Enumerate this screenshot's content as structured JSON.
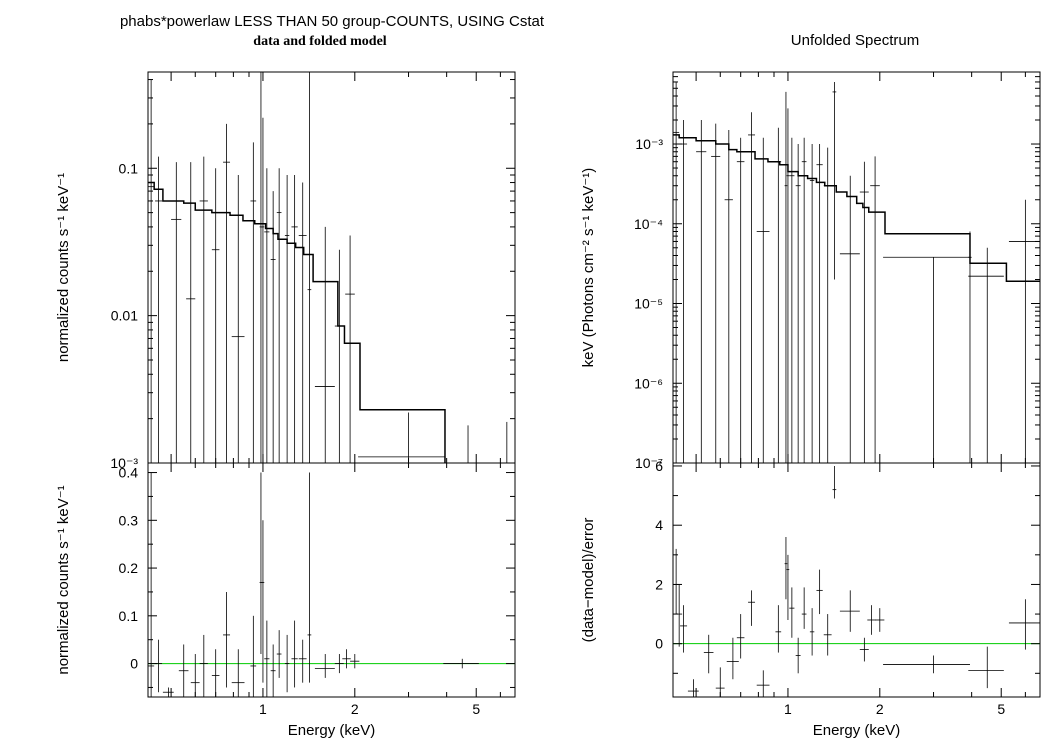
{
  "title_left": "phabs*powerlaw LESS THAN 50 group-COUNTS, USING Cstat",
  "subtitle_left": "data and folded model",
  "title_right": "Unfolded Spectrum",
  "colors": {
    "axis": "#000000",
    "model": "#000000",
    "data": "#000000",
    "zero_line": "#00cc00"
  },
  "chart_data": [
    {
      "id": "folded",
      "type": "line",
      "scale": "log-log",
      "xlabel": "",
      "ylabel": "normalized counts s⁻¹ keV⁻¹",
      "xlim": [
        0.42,
        6.7
      ],
      "ylim": [
        0.001,
        0.45
      ],
      "y_ticks": [
        {
          "v": 0.001,
          "label": "10⁻³"
        },
        {
          "v": 0.01,
          "label": "0.01"
        },
        {
          "v": 0.1,
          "label": "0.1"
        }
      ],
      "model": [
        [
          0.42,
          0.08
        ],
        [
          0.44,
          0.072
        ],
        [
          0.47,
          0.06
        ],
        [
          0.55,
          0.058
        ],
        [
          0.6,
          0.052
        ],
        [
          0.68,
          0.05
        ],
        [
          0.78,
          0.048
        ],
        [
          0.86,
          0.044
        ],
        [
          0.94,
          0.042
        ],
        [
          1.02,
          0.039
        ],
        [
          1.08,
          0.036
        ],
        [
          1.12,
          0.033
        ],
        [
          1.2,
          0.031
        ],
        [
          1.28,
          0.029
        ],
        [
          1.36,
          0.026
        ],
        [
          1.46,
          0.017
        ],
        [
          1.62,
          0.017
        ],
        [
          1.76,
          0.0085
        ],
        [
          1.85,
          0.0065
        ],
        [
          2.08,
          0.0023
        ],
        [
          3.95,
          0.0023
        ],
        [
          3.95,
          0.001
        ]
      ],
      "data": [
        {
          "x": 0.43,
          "xe": 0.01,
          "y": 0.075,
          "lo": 0.001,
          "hi": 0.4
        },
        {
          "x": 0.455,
          "xe": 0.012,
          "y": 0.06,
          "lo": 0.001,
          "hi": 0.12
        },
        {
          "x": 0.52,
          "xe": 0.02,
          "y": 0.045,
          "lo": 0.001,
          "hi": 0.11
        },
        {
          "x": 0.58,
          "xe": 0.02,
          "y": 0.013,
          "lo": 0.001,
          "hi": 0.11
        },
        {
          "x": 0.64,
          "xe": 0.02,
          "y": 0.06,
          "lo": 0.001,
          "hi": 0.12
        },
        {
          "x": 0.7,
          "xe": 0.02,
          "y": 0.028,
          "lo": 0.001,
          "hi": 0.1
        },
        {
          "x": 0.76,
          "xe": 0.02,
          "y": 0.11,
          "lo": 0.001,
          "hi": 0.2
        },
        {
          "x": 0.83,
          "xe": 0.04,
          "y": 0.0072,
          "lo": 0.001,
          "hi": 0.09
        },
        {
          "x": 0.93,
          "xe": 0.02,
          "y": 0.06,
          "lo": 0.001,
          "hi": 0.15
        },
        {
          "x": 0.985,
          "xe": 0.01,
          "y": 0.04,
          "lo": 0.001,
          "hi": 0.45
        },
        {
          "x": 1.0,
          "xe": 0.01,
          "y": 0.04,
          "lo": 0.001,
          "hi": 0.22
        },
        {
          "x": 1.03,
          "xe": 0.02,
          "y": 0.037,
          "lo": 0.001,
          "hi": 0.1
        },
        {
          "x": 1.08,
          "xe": 0.02,
          "y": 0.024,
          "lo": 0.001,
          "hi": 0.07
        },
        {
          "x": 1.13,
          "xe": 0.02,
          "y": 0.05,
          "lo": 0.001,
          "hi": 0.1
        },
        {
          "x": 1.2,
          "xe": 0.02,
          "y": 0.035,
          "lo": 0.001,
          "hi": 0.09
        },
        {
          "x": 1.27,
          "xe": 0.03,
          "y": 0.04,
          "lo": 0.001,
          "hi": 0.09
        },
        {
          "x": 1.35,
          "xe": 0.04,
          "y": 0.035,
          "lo": 0.001,
          "hi": 0.08
        },
        {
          "x": 1.42,
          "xe": 0.02,
          "y": 0.015,
          "lo": 0.001,
          "hi": 0.45
        },
        {
          "x": 1.6,
          "xe": 0.12,
          "y": 0.0033,
          "lo": 0.001,
          "hi": 0.04
        },
        {
          "x": 1.78,
          "xe": 0.06,
          "y": 0.0085,
          "lo": 0.001,
          "hi": 0.028
        },
        {
          "x": 1.93,
          "xe": 0.07,
          "y": 0.014,
          "lo": 0.001,
          "hi": 0.035
        },
        {
          "x": 3.0,
          "xe": 0.95,
          "y": 0.0011,
          "lo": 0.001,
          "hi": 0.0022
        },
        {
          "x": 4.7,
          "xe": 0.05,
          "y": 0.001,
          "lo": 0.001,
          "hi": 0.0018
        },
        {
          "x": 6.3,
          "xe": 0.05,
          "y": 0.001,
          "lo": 0.001,
          "hi": 0.0019
        }
      ]
    },
    {
      "id": "folded-residual",
      "type": "scatter",
      "scale": "log-linear",
      "xlabel": "Energy (keV)",
      "ylabel": "normalized counts s⁻¹ keV⁻¹",
      "xlim": [
        0.42,
        6.7
      ],
      "ylim": [
        -0.07,
        0.42
      ],
      "x_ticks": [
        {
          "v": 1,
          "label": "1"
        },
        {
          "v": 2,
          "label": "2"
        },
        {
          "v": 5,
          "label": "5"
        }
      ],
      "y_ticks": [
        {
          "v": 0,
          "label": "0"
        },
        {
          "v": 0.1,
          "label": "0.1"
        },
        {
          "v": 0.2,
          "label": "0.2"
        },
        {
          "v": 0.3,
          "label": "0.3"
        },
        {
          "v": 0.4,
          "label": "0.4"
        }
      ],
      "zero_line": 0,
      "data": [
        {
          "x": 0.43,
          "xe": 0.01,
          "y": -0.005,
          "lo": -0.07,
          "hi": 0.4
        },
        {
          "x": 0.455,
          "xe": 0.012,
          "y": 0.0,
          "lo": -0.06,
          "hi": 0.05
        },
        {
          "x": 0.49,
          "xe": 0.02,
          "y": -0.06,
          "lo": -0.07,
          "hi": -0.05
        },
        {
          "x": 0.55,
          "xe": 0.02,
          "y": -0.015,
          "lo": -0.07,
          "hi": 0.04
        },
        {
          "x": 0.6,
          "xe": 0.02,
          "y": -0.04,
          "lo": -0.07,
          "hi": 0.02
        },
        {
          "x": 0.64,
          "xe": 0.02,
          "y": 0.0,
          "lo": -0.07,
          "hi": 0.06
        },
        {
          "x": 0.7,
          "xe": 0.02,
          "y": -0.025,
          "lo": -0.07,
          "hi": 0.03
        },
        {
          "x": 0.76,
          "xe": 0.02,
          "y": 0.06,
          "lo": -0.05,
          "hi": 0.15
        },
        {
          "x": 0.83,
          "xe": 0.04,
          "y": -0.04,
          "lo": -0.07,
          "hi": 0.03
        },
        {
          "x": 0.93,
          "xe": 0.02,
          "y": -0.005,
          "lo": -0.07,
          "hi": 0.1
        },
        {
          "x": 0.985,
          "xe": 0.01,
          "y": 0.17,
          "lo": 0.02,
          "hi": 0.4
        },
        {
          "x": 1.0,
          "xe": 0.01,
          "y": 0.17,
          "lo": -0.04,
          "hi": 0.3
        },
        {
          "x": 1.03,
          "xe": 0.02,
          "y": 0.01,
          "lo": -0.07,
          "hi": 0.09
        },
        {
          "x": 1.08,
          "xe": 0.02,
          "y": -0.015,
          "lo": -0.07,
          "hi": 0.04
        },
        {
          "x": 1.13,
          "xe": 0.02,
          "y": 0.02,
          "lo": -0.03,
          "hi": 0.07
        },
        {
          "x": 1.2,
          "xe": 0.02,
          "y": 0.0,
          "lo": -0.06,
          "hi": 0.06
        },
        {
          "x": 1.27,
          "xe": 0.03,
          "y": 0.01,
          "lo": -0.05,
          "hi": 0.09
        },
        {
          "x": 1.35,
          "xe": 0.04,
          "y": 0.01,
          "lo": -0.04,
          "hi": 0.05
        },
        {
          "x": 1.42,
          "xe": 0.02,
          "y": 0.06,
          "lo": -0.04,
          "hi": 0.4
        },
        {
          "x": 1.6,
          "xe": 0.12,
          "y": -0.01,
          "lo": -0.03,
          "hi": 0.02
        },
        {
          "x": 1.78,
          "xe": 0.06,
          "y": 0.0,
          "lo": -0.02,
          "hi": 0.02
        },
        {
          "x": 1.88,
          "xe": 0.06,
          "y": 0.01,
          "lo": -0.01,
          "hi": 0.03
        },
        {
          "x": 2.0,
          "xe": 0.07,
          "y": 0.005,
          "lo": -0.01,
          "hi": 0.02
        },
        {
          "x": 4.5,
          "xe": 0.6,
          "y": 0.0,
          "lo": -0.01,
          "hi": 0.01
        }
      ]
    },
    {
      "id": "unfolded",
      "type": "line",
      "scale": "log-log",
      "xlabel": "",
      "ylabel": "keV (Photons cm⁻² s⁻¹ keV⁻¹)",
      "xlim": [
        0.42,
        6.7
      ],
      "ylim": [
        1e-07,
        0.008
      ],
      "y_ticks": [
        {
          "v": 1e-07,
          "label": "10⁻⁷"
        },
        {
          "v": 1e-06,
          "label": "10⁻⁶"
        },
        {
          "v": 1e-05,
          "label": "10⁻⁵"
        },
        {
          "v": 0.0001,
          "label": "10⁻⁴"
        },
        {
          "v": 0.001,
          "label": "10⁻³"
        }
      ],
      "model": [
        [
          0.42,
          0.0013
        ],
        [
          0.44,
          0.0012
        ],
        [
          0.5,
          0.0011
        ],
        [
          0.58,
          0.001
        ],
        [
          0.64,
          0.00085
        ],
        [
          0.68,
          0.0008
        ],
        [
          0.78,
          0.00065
        ],
        [
          0.86,
          0.0006
        ],
        [
          0.94,
          0.00055
        ],
        [
          1.0,
          0.00045
        ],
        [
          1.08,
          0.0004
        ],
        [
          1.16,
          0.00037
        ],
        [
          1.24,
          0.00033
        ],
        [
          1.32,
          0.0003
        ],
        [
          1.44,
          0.00025
        ],
        [
          1.56,
          0.00022
        ],
        [
          1.68,
          0.00018
        ],
        [
          1.76,
          0.00016
        ],
        [
          1.84,
          0.00014
        ],
        [
          2.08,
          7.5e-05
        ],
        [
          3.95,
          7.5e-05
        ],
        [
          3.95,
          3.2e-05
        ],
        [
          5.2,
          3.2e-05
        ],
        [
          5.2,
          1.9e-05
        ],
        [
          6.7,
          1.9e-05
        ]
      ],
      "data": [
        {
          "x": 0.43,
          "xe": 0.01,
          "y": 0.0014,
          "lo": 1e-07,
          "hi": 0.006
        },
        {
          "x": 0.455,
          "xe": 0.012,
          "y": 0.001,
          "lo": 1e-07,
          "hi": 0.002
        },
        {
          "x": 0.52,
          "xe": 0.02,
          "y": 0.0008,
          "lo": 1e-07,
          "hi": 0.002
        },
        {
          "x": 0.58,
          "xe": 0.02,
          "y": 0.0007,
          "lo": 1e-07,
          "hi": 0.0018
        },
        {
          "x": 0.64,
          "xe": 0.02,
          "y": 0.0002,
          "lo": 1e-07,
          "hi": 0.0015
        },
        {
          "x": 0.7,
          "xe": 0.02,
          "y": 0.0006,
          "lo": 1e-07,
          "hi": 0.0012
        },
        {
          "x": 0.76,
          "xe": 0.02,
          "y": 0.0013,
          "lo": 1e-07,
          "hi": 0.0025
        },
        {
          "x": 0.83,
          "xe": 0.04,
          "y": 8e-05,
          "lo": 1e-07,
          "hi": 0.0012
        },
        {
          "x": 0.93,
          "xe": 0.02,
          "y": 0.0006,
          "lo": 1e-07,
          "hi": 0.0016
        },
        {
          "x": 0.985,
          "xe": 0.01,
          "y": 0.0003,
          "lo": 1e-07,
          "hi": 0.0045
        },
        {
          "x": 1.0,
          "xe": 0.01,
          "y": 0.0004,
          "lo": 1e-07,
          "hi": 0.0028
        },
        {
          "x": 1.03,
          "xe": 0.02,
          "y": 0.0004,
          "lo": 1e-07,
          "hi": 0.0012
        },
        {
          "x": 1.08,
          "xe": 0.02,
          "y": 0.0003,
          "lo": 1e-07,
          "hi": 0.001
        },
        {
          "x": 1.13,
          "xe": 0.02,
          "y": 0.0006,
          "lo": 1e-07,
          "hi": 0.0012
        },
        {
          "x": 1.2,
          "xe": 0.02,
          "y": 0.00035,
          "lo": 1e-07,
          "hi": 0.001
        },
        {
          "x": 1.27,
          "xe": 0.03,
          "y": 0.00055,
          "lo": 1e-07,
          "hi": 0.001
        },
        {
          "x": 1.35,
          "xe": 0.04,
          "y": 0.0003,
          "lo": 1e-07,
          "hi": 0.0009
        },
        {
          "x": 1.42,
          "xe": 0.02,
          "y": 0.0045,
          "lo": 2e-05,
          "hi": 0.006
        },
        {
          "x": 1.6,
          "xe": 0.12,
          "y": 4.2e-05,
          "lo": 1e-07,
          "hi": 0.0004
        },
        {
          "x": 1.78,
          "xe": 0.06,
          "y": 0.00025,
          "lo": 1e-07,
          "hi": 0.0006
        },
        {
          "x": 1.93,
          "xe": 0.07,
          "y": 0.0003,
          "lo": 1e-07,
          "hi": 0.0007
        },
        {
          "x": 3.0,
          "xe": 0.95,
          "y": 3.8e-05,
          "lo": 1e-07,
          "hi": 3.8e-05
        },
        {
          "x": 3.95,
          "xe": 0.05,
          "y": 3.8e-05,
          "lo": 1e-07,
          "hi": 8e-05
        },
        {
          "x": 4.5,
          "xe": 0.6,
          "y": 2.2e-05,
          "lo": 1e-07,
          "hi": 5e-05
        },
        {
          "x": 6.0,
          "xe": 0.7,
          "y": 6e-05,
          "lo": 1e-07,
          "hi": 0.0002
        }
      ]
    },
    {
      "id": "unfolded-residual",
      "type": "scatter",
      "scale": "log-linear",
      "xlabel": "Energy (keV)",
      "ylabel": "(data−model)/error",
      "xlim": [
        0.42,
        6.7
      ],
      "ylim": [
        -1.8,
        6.1
      ],
      "x_ticks": [
        {
          "v": 1,
          "label": "1"
        },
        {
          "v": 2,
          "label": "2"
        },
        {
          "v": 5,
          "label": "5"
        }
      ],
      "y_ticks": [
        {
          "v": 0,
          "label": "0"
        },
        {
          "v": 2,
          "label": "2"
        },
        {
          "v": 4,
          "label": "4"
        },
        {
          "v": 6,
          "label": "6"
        }
      ],
      "zero_line": 0,
      "data": [
        {
          "x": 0.43,
          "xe": 0.01,
          "y": 2.0,
          "lo": 1.0,
          "hi": 3.2
        },
        {
          "x": 0.44,
          "xe": 0.01,
          "y": 1.0,
          "lo": -0.1,
          "hi": 2.0
        },
        {
          "x": 0.455,
          "xe": 0.012,
          "y": 0.6,
          "lo": -0.3,
          "hi": 1.3
        },
        {
          "x": 0.49,
          "xe": 0.02,
          "y": -1.6,
          "lo": -1.8,
          "hi": -1.2
        },
        {
          "x": 0.55,
          "xe": 0.02,
          "y": -0.3,
          "lo": -1.0,
          "hi": 0.3
        },
        {
          "x": 0.6,
          "xe": 0.02,
          "y": -1.5,
          "lo": -1.8,
          "hi": -0.8
        },
        {
          "x": 0.66,
          "xe": 0.03,
          "y": -0.6,
          "lo": -1.2,
          "hi": 0.2
        },
        {
          "x": 0.7,
          "xe": 0.02,
          "y": 0.2,
          "lo": -0.5,
          "hi": 1.0
        },
        {
          "x": 0.76,
          "xe": 0.02,
          "y": 1.4,
          "lo": 0.6,
          "hi": 1.8
        },
        {
          "x": 0.83,
          "xe": 0.04,
          "y": -1.4,
          "lo": -1.8,
          "hi": -0.9
        },
        {
          "x": 0.93,
          "xe": 0.02,
          "y": 0.4,
          "lo": -0.3,
          "hi": 1.3
        },
        {
          "x": 0.985,
          "xe": 0.01,
          "y": 2.7,
          "lo": 1.5,
          "hi": 3.6
        },
        {
          "x": 1.0,
          "xe": 0.01,
          "y": 2.5,
          "lo": 0.8,
          "hi": 3.0
        },
        {
          "x": 1.03,
          "xe": 0.02,
          "y": 1.2,
          "lo": 0.2,
          "hi": 1.9
        },
        {
          "x": 1.08,
          "xe": 0.02,
          "y": -0.4,
          "lo": -1.0,
          "hi": 0.2
        },
        {
          "x": 1.13,
          "xe": 0.02,
          "y": 1.0,
          "lo": 0.5,
          "hi": 1.9
        },
        {
          "x": 1.2,
          "xe": 0.02,
          "y": 0.4,
          "lo": -0.4,
          "hi": 1.2
        },
        {
          "x": 1.27,
          "xe": 0.03,
          "y": 1.8,
          "lo": 1.0,
          "hi": 2.5
        },
        {
          "x": 1.35,
          "xe": 0.04,
          "y": 0.3,
          "lo": -0.4,
          "hi": 1.0
        },
        {
          "x": 1.42,
          "xe": 0.02,
          "y": 5.2,
          "lo": 4.9,
          "hi": 6.0
        },
        {
          "x": 1.6,
          "xe": 0.12,
          "y": 1.1,
          "lo": 0.4,
          "hi": 1.8
        },
        {
          "x": 1.78,
          "xe": 0.06,
          "y": -0.2,
          "lo": -0.6,
          "hi": 0.2
        },
        {
          "x": 1.88,
          "xe": 0.06,
          "y": 0.8,
          "lo": 0.3,
          "hi": 1.3
        },
        {
          "x": 2.0,
          "xe": 0.07,
          "y": 0.8,
          "lo": 0.4,
          "hi": 1.2
        },
        {
          "x": 3.0,
          "xe": 0.95,
          "y": -0.7,
          "lo": -1.0,
          "hi": -0.4
        },
        {
          "x": 4.5,
          "xe": 0.6,
          "y": -0.9,
          "lo": -1.5,
          "hi": -0.1
        },
        {
          "x": 6.0,
          "xe": 0.7,
          "y": 0.7,
          "lo": -0.2,
          "hi": 1.5
        }
      ]
    }
  ]
}
